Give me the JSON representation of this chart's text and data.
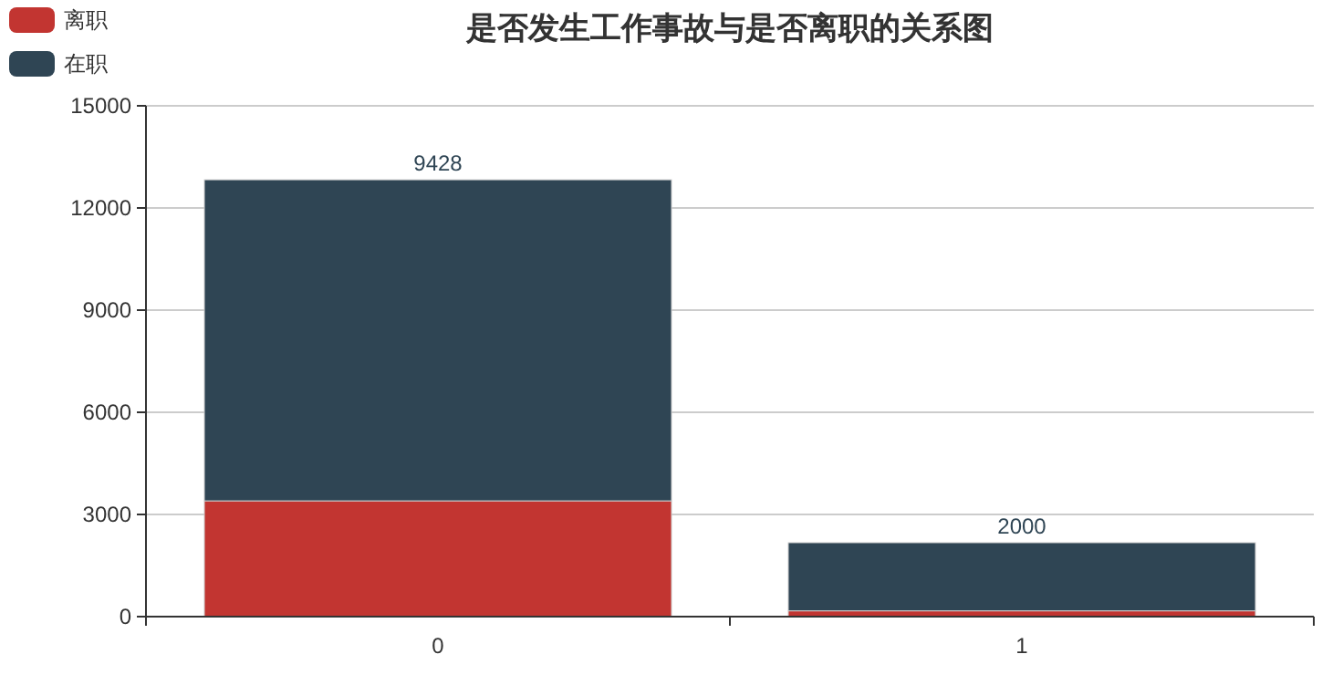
{
  "chart_data": {
    "type": "bar",
    "title": "是否发生工作事故与是否离职的关系图",
    "categories": [
      "0",
      "1"
    ],
    "stacked": true,
    "series": [
      {
        "name": "离职",
        "color": "#c23531",
        "values": [
          3400,
          170
        ]
      },
      {
        "name": "在职",
        "color": "#2f4554",
        "values": [
          9428,
          2000
        ],
        "value_labels": [
          "9428",
          "2000"
        ]
      }
    ],
    "ylim": [
      0,
      15000
    ],
    "yticks": [
      0,
      3000,
      6000,
      9000,
      12000,
      15000
    ],
    "grid": "y",
    "legend": "top left"
  }
}
